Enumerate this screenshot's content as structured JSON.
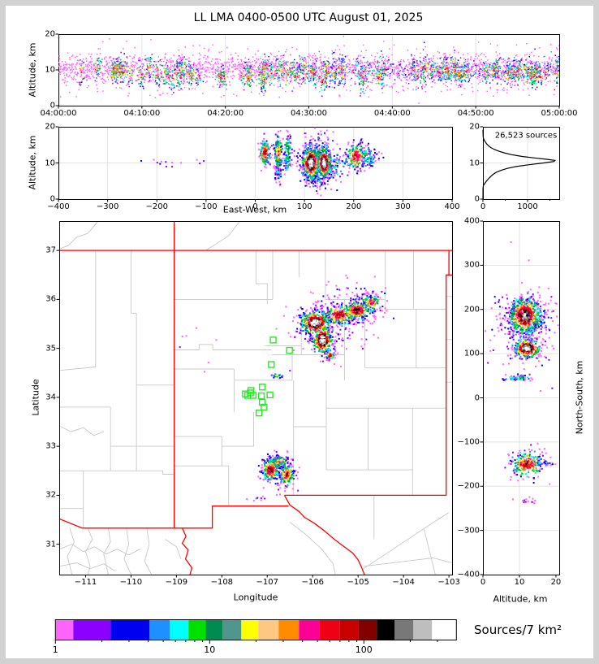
{
  "title": "LL LMA 0400-0500 UTC August 01, 2025",
  "chart_data": {
    "type": "scatter",
    "title": "LL LMA 0400-0500 UTC August 01, 2025",
    "description": "Lightning Mapping Array source density composite: time-height series, east-west cross-section, altitude histogram, plan-view map, north-south cross-section, log density colorbar",
    "total_sources_label": "26,523 sources",
    "palette": [
      "#ff64ff",
      "#8c00ff",
      "#0000f0",
      "#1e90ff",
      "#00ffff",
      "#00e000",
      "#008c50",
      "#50968c",
      "#ffff00",
      "#ffc882",
      "#ff8c00",
      "#ff0096",
      "#f00014",
      "#c80000",
      "#820000",
      "#000000",
      "#787878",
      "#bebebe",
      "#ffffff"
    ],
    "base_colors": {
      "grid": "#e3e3e3",
      "county": "#c8c8c8",
      "state": "#ff0000",
      "station": "#2be52b",
      "spine": "#000000"
    },
    "panels": {
      "time_height": {
        "ylabel": "Altitude, km",
        "alt_range": [
          0,
          20
        ],
        "yticks": {
          "vals": [
            0,
            10,
            20
          ],
          "labels": [
            "0",
            "10",
            "20"
          ]
        },
        "xticks": {
          "vals": [
            0,
            600,
            1200,
            1800,
            2400,
            3000,
            3600
          ],
          "labels": [
            "04:00:00",
            "04:10:00",
            "04:20:00",
            "04:30:00",
            "04:40:00",
            "04:50:00",
            "05:00:00"
          ]
        },
        "scatter_model": {
          "background_n": 2600,
          "late_blue_n": 320,
          "striations": 95,
          "band_center_km": 10.1,
          "band_spread_km": [
            1.6,
            3.1
          ]
        }
      },
      "ew_height": {
        "ylabel": "Altitude, km",
        "xlabel": "East-West, km",
        "x_range": [
          -400,
          400
        ],
        "alt_range": [
          0,
          20
        ],
        "yticks": {
          "vals": [
            0,
            10,
            20
          ],
          "labels": [
            "0",
            "10",
            "20"
          ]
        },
        "xticks": {
          "vals": [
            -400,
            -300,
            -200,
            -100,
            0,
            100,
            200,
            300,
            400
          ],
          "labels": [
            "−400",
            "−300",
            "−200",
            "−100",
            "0",
            "100",
            "200",
            "300",
            "400"
          ]
        },
        "clusters": [
          {
            "x": 20,
            "y": 12.8,
            "sx": 5,
            "sy": 1.7,
            "n": 170,
            "p": 13
          },
          {
            "x": 47,
            "y": 12.5,
            "sx": 4.5,
            "sy": 2.6,
            "n": 160,
            "p": 10
          },
          {
            "x": 47,
            "y": 7.5,
            "sx": 3,
            "sy": 2,
            "n": 40,
            "p": 3
          },
          {
            "x": 66,
            "y": 12.5,
            "sx": 4,
            "sy": 3,
            "n": 110,
            "p": 6
          },
          {
            "x": 113,
            "y": 10,
            "sx": 9,
            "sy": 2.3,
            "n": 480,
            "p": 18
          },
          {
            "x": 140,
            "y": 10,
            "sx": 7,
            "sy": 2.1,
            "n": 380,
            "p": 18
          },
          {
            "x": 127,
            "y": 11,
            "sx": 20,
            "sy": 3.6,
            "n": 240,
            "p": 6
          },
          {
            "x": 127,
            "y": 5.5,
            "sx": 12,
            "sy": 1.8,
            "n": 70,
            "p": 3
          },
          {
            "x": 205,
            "y": 11.8,
            "sx": 11,
            "sy": 1.9,
            "n": 210,
            "p": 12
          },
          {
            "x": 230,
            "y": 12,
            "sx": 11,
            "sy": 1.6,
            "n": 90,
            "p": 5
          },
          {
            "x": 165,
            "y": 9,
            "sx": 12,
            "sy": 2,
            "n": 60,
            "p": 4
          },
          {
            "x": -155,
            "y": 10,
            "sx": 35,
            "sy": 0.7,
            "n": 13,
            "p": 0
          }
        ]
      },
      "source_histogram": {
        "annotation": "26,523 sources",
        "x_range": [
          0,
          1709
        ],
        "xticks": {
          "vals": [
            0,
            1000
          ],
          "labels": [
            "0",
            "1000"
          ]
        },
        "xminor": [
          500,
          1500
        ],
        "yticks": {
          "vals": [
            0,
            10,
            20
          ],
          "labels": [
            "0",
            "10",
            "20"
          ]
        },
        "profile_alt_count": [
          [
            0,
            0
          ],
          [
            3,
            2
          ],
          [
            3.8,
            10
          ],
          [
            4.3,
            40
          ],
          [
            5,
            80
          ],
          [
            5.5,
            115
          ],
          [
            6,
            155
          ],
          [
            6.5,
            195
          ],
          [
            7,
            245
          ],
          [
            7.5,
            315
          ],
          [
            8,
            415
          ],
          [
            8.5,
            545
          ],
          [
            9,
            745
          ],
          [
            9.5,
            1030
          ],
          [
            10,
            1360
          ],
          [
            10.4,
            1590
          ],
          [
            10.7,
            1615
          ],
          [
            11,
            1450
          ],
          [
            11.4,
            1150
          ],
          [
            11.8,
            880
          ],
          [
            12.3,
            640
          ],
          [
            12.8,
            470
          ],
          [
            13.3,
            345
          ],
          [
            13.8,
            245
          ],
          [
            14.3,
            170
          ],
          [
            14.8,
            118
          ],
          [
            15.3,
            82
          ],
          [
            15.8,
            55
          ],
          [
            16.2,
            34
          ],
          [
            16.6,
            18
          ],
          [
            17,
            9
          ],
          [
            17.6,
            4
          ],
          [
            18.4,
            1
          ],
          [
            19.2,
            0
          ]
        ]
      },
      "plan_map": {
        "xlabel": "Longitude",
        "ylabel": "Latitude",
        "lon_range": [
          -111.58,
          -102.93
        ],
        "lat_range": [
          30.38,
          37.6
        ],
        "xticks": {
          "vals": [
            -111,
            -110,
            -109,
            -108,
            -107,
            -106,
            -105,
            -104,
            -103
          ],
          "labels": [
            "−111",
            "−110",
            "−109",
            "−108",
            "−107",
            "−106",
            "−105",
            "−104",
            "−103"
          ]
        },
        "yticks": {
          "vals": [
            31,
            32,
            33,
            34,
            35,
            36,
            37
          ],
          "labels": [
            "31",
            "32",
            "33",
            "34",
            "35",
            "36",
            "37"
          ]
        },
        "clusters": [
          {
            "x": -105.95,
            "y": 35.52,
            "sx": 0.17,
            "sy": 0.13,
            "n": 400,
            "p": 18
          },
          {
            "x": -105.78,
            "y": 35.17,
            "sx": 0.11,
            "sy": 0.15,
            "n": 300,
            "p": 18
          },
          {
            "x": -105.4,
            "y": 35.68,
            "sx": 0.2,
            "sy": 0.11,
            "n": 230,
            "p": 13
          },
          {
            "x": -105.02,
            "y": 35.78,
            "sx": 0.16,
            "sy": 0.1,
            "n": 240,
            "p": 14
          },
          {
            "x": -104.72,
            "y": 35.93,
            "sx": 0.12,
            "sy": 0.09,
            "n": 130,
            "p": 11
          },
          {
            "x": -105.62,
            "y": 34.85,
            "sx": 0.05,
            "sy": 0.05,
            "n": 45,
            "p": 13
          },
          {
            "x": -105.6,
            "y": 35.5,
            "sx": 0.45,
            "sy": 0.33,
            "n": 170,
            "p": 1
          },
          {
            "x": -104.9,
            "y": 35.9,
            "sx": 0.3,
            "sy": 0.2,
            "n": 70,
            "p": 1
          },
          {
            "x": -106.93,
            "y": 32.52,
            "sx": 0.09,
            "sy": 0.12,
            "n": 190,
            "p": 14
          },
          {
            "x": -106.57,
            "y": 32.42,
            "sx": 0.09,
            "sy": 0.1,
            "n": 160,
            "p": 13
          },
          {
            "x": -106.75,
            "y": 32.68,
            "sx": 0.11,
            "sy": 0.07,
            "n": 110,
            "p": 9
          },
          {
            "x": -106.73,
            "y": 32.5,
            "sx": 0.2,
            "sy": 0.2,
            "n": 90,
            "p": 2
          },
          {
            "x": -106.78,
            "y": 34.44,
            "sx": 0.06,
            "sy": 0.025,
            "n": 22,
            "p": 10
          },
          {
            "x": -107.2,
            "y": 31.93,
            "sx": 0.1,
            "sy": 0.025,
            "n": 10,
            "p": 1
          },
          {
            "x": -108.7,
            "y": 35.1,
            "sx": 0.5,
            "sy": 0.35,
            "n": 7,
            "p": 0
          }
        ],
        "stations_lonlat": [
          [
            -106.87,
            35.17
          ],
          [
            -106.51,
            34.96
          ],
          [
            -106.91,
            34.67
          ],
          [
            -107.11,
            34.21
          ],
          [
            -107.36,
            34.14
          ],
          [
            -107.43,
            34.04
          ],
          [
            -107.31,
            34.04
          ],
          [
            -107.13,
            34.03
          ],
          [
            -106.94,
            34.05
          ],
          [
            -107.37,
            34.09
          ],
          [
            -107.48,
            34.07
          ],
          [
            -107.11,
            33.9
          ],
          [
            -107.07,
            33.8
          ],
          [
            -107.18,
            33.68
          ]
        ],
        "state_borders": [
          "-111.58 37 -102.93 37",
          "-109.05 37.6 -109.05 31.33",
          "-103.0 37 -103.0 36.5 -103.06 36.5 -103.06 32.0 -106.62 32.0",
          "-103.0 36.5 -102.93 36.5",
          "-106.62 32.0 -106.5 31.8 -106.3 31.67 -106.18 31.55 -105.95 31.42 -105.75 31.28 -105.55 31.12 -105.35 30.98 -105.12 30.82 -105.0 30.68 -104.92 30.52 -104.86 30.38",
          "-106.53 31.78 -108.21 31.78 -108.21 31.33 -111.07 31.33 -111.58 31.52",
          "-108.87 31.33 -108.79 31.16 -108.87 31.02 -108.74 30.88 -108.8 30.7 -108.66 30.52 -108.7 30.38"
        ],
        "county_lines": [
          "-110.78 37 -110.78 34.62",
          "-111.58 34.55 -110.78 34.62",
          "-110.0 37 -110.0 35.72 -109.88 35.72 -109.88 34.25 -109.05 34.25",
          "-111.58 33.8 -110.45 33.8",
          "-110.45 33.8 -110.45 32.5",
          "-109.88 34.25 -109.88 32.5",
          "-111.58 32.5 -109.3 32.5 -109.3 32.43 -109.05 32.43",
          "-111.05 32.5 -111.05 31.33",
          "-111.58 31.73 -111.05 31.73",
          "-110.45 33.0 -109.05 33.0",
          "-110.72 37.6 -110.95 37.35 -111.2 37.27 -111.38 37.1 -111.58 37.03",
          "-111.58 33.42 -111.33 33.3 -111.05 33.38 -110.82 33.22 -110.6 33.3",
          "-107.6 37.6 -107.85 37.3 -108.1 37.15 -108.35 37.0",
          "-109.05 36.0 -106.88 36.0",
          "-106.88 37 -106.88 36.0",
          "-107.25 37 -107.25 36.32 -107.0 36.32 -107.0 35.9",
          "-109.05 34.97 -108.5 34.97 -108.5 35.08 -108.2 35.08 -108.2 34.97 -106.9 34.97",
          "-109.05 34.58 -107.73 34.58",
          "-107.73 34.58 -107.73 33.7",
          "-109.05 33.2 -108.0 33.2",
          "-109.05 32.6 -107.85 32.6",
          "-107.85 32.6 -107.85 31.78",
          "-107.73 34.35 -106.45 34.35",
          "-106.45 34.87 -106.45 34.35",
          "-107.05 35.05 -106.25 35.05",
          "-106.25 35.6 -106.25 34.87",
          "-106.9 34.87 -105.3 34.87",
          "-105.3 35.22 -105.3 34.35",
          "-106.25 35.55 -105.72 35.55",
          "-105.72 37 -105.72 36.0",
          "-106.3 37 -106.3 36.45",
          "-105.72 36.0 -104.4 36.0",
          "-104.4 37 -104.4 35.75",
          "-105.3 36.0 -105.3 35.22",
          "-103.78 37 -103.78 35.8",
          "-104.4 35.8 -103.06 35.8",
          "-104.85 35.75 -104.85 34.6",
          "-104.85 34.6 -103.06 34.6",
          "-103.72 35.8 -103.72 34.6",
          "-106.42 34.35 -106.42 32.0",
          "-105.7 34.35 -105.7 32.52",
          "-105.7 33.78 -103.06 33.78",
          "-104.78 33.78 -104.78 32.52",
          "-103.8 33.78 -103.8 32.0",
          "-105.7 32.52 -103.8 32.52",
          "-108.0 33.2 -108.0 32.6",
          "-107.3 33.7 -107.3 33.0 -108.0 33.0",
          "-106.42 33.4 -105.7 33.4",
          "-103.06 36.06 -102.93 36.06",
          "-103.06 35.18 -102.93 35.18",
          "-103.06 34.31 -102.93 34.31",
          "-104.88 30.5 -103.55 31.32",
          "-103.55 31.32 -103.0 31.65",
          "-104.88 30.55 -103.35 30.72 -102.93 30.62",
          "-103.55 31.32 -103.3 30.38",
          "-104.65 32.0 -104.65 31.1",
          "-106.5 31.45 -106.15 31.2 -105.8 30.9 -105.55 30.6 -105.5 30.38",
          "-111.58 30.9 -111.3 31.0 -111.05 30.85 -110.8 30.95 -110.55 30.8 -110.3 30.9 -110.05 30.78 -109.8 30.9",
          "-111.35 31.33 -111.25 31.05 -111.4 30.75 -111.3 30.38",
          "-110.95 31.33 -110.85 31.1 -111.0 30.85 -110.9 30.55 -110.95 30.38",
          "-110.5 31.33 -110.45 31.05 -110.6 30.8 -110.5 30.38",
          "-110.1 31.33 -110.05 31.0 -110.15 30.7 -110.0 30.38",
          "-109.65 31.33 -109.6 31.0 -109.7 30.65 -109.55 30.38",
          "-109.25 31.1 -109.0 30.95 -108.9 30.7",
          "-111.58 30.55 -111.2 30.62 -110.9 30.5 -110.6 30.6 -110.35 30.45"
        ]
      },
      "ns_height": {
        "xlabel": "Altitude, km",
        "ylabel": "North-South, km",
        "x_range": [
          0,
          20
        ],
        "y_range": [
          -400,
          400
        ],
        "xticks": {
          "vals": [
            0,
            10,
            20
          ],
          "labels": [
            "0",
            "10",
            "20"
          ]
        },
        "yticks": {
          "vals": [
            400,
            300,
            200,
            100,
            0,
            -100,
            -200,
            -300,
            -400
          ],
          "labels": [
            "400",
            "300",
            "200",
            "100",
            "0",
            "−100",
            "−200",
            "−300",
            "−400"
          ]
        },
        "clusters": [
          {
            "x": 11.5,
            "y": 185,
            "sx": 2.3,
            "sy": 21,
            "n": 650,
            "p": 16
          },
          {
            "x": 13,
            "y": 178,
            "sx": 4,
            "sy": 33,
            "n": 200,
            "p": 3
          },
          {
            "x": 12,
            "y": 112,
            "sx": 1.9,
            "sy": 11,
            "n": 330,
            "p": 18
          },
          {
            "x": 9.5,
            "y": 45,
            "sx": 2.2,
            "sy": 3,
            "n": 55,
            "p": 6
          },
          {
            "x": 12,
            "y": -150,
            "sx": 2.2,
            "sy": 16,
            "n": 260,
            "p": 13
          },
          {
            "x": 15,
            "y": -147,
            "sx": 2.5,
            "sy": 6,
            "n": 50,
            "p": 2
          },
          {
            "x": 12.5,
            "y": -232,
            "sx": 1.6,
            "sy": 4,
            "n": 14,
            "p": 1
          },
          {
            "x": 11,
            "y": 150,
            "sx": 5,
            "sy": 55,
            "n": 110,
            "p": 1
          }
        ]
      }
    },
    "colorbar": {
      "label": "Sources/7 km²",
      "scale": "log",
      "tick_labels": [
        "1",
        "10",
        "100"
      ],
      "tick_values": [
        1,
        10,
        100
      ],
      "minor_tick_values": [
        2,
        3,
        4,
        5,
        6,
        7,
        8,
        9,
        20,
        30,
        40,
        50,
        60,
        70,
        80,
        90,
        200,
        300
      ],
      "segments": [
        {
          "color": "#ff64ff",
          "w": 22
        },
        {
          "color": "#8c00ff",
          "w": 46
        },
        {
          "color": "#0000f0",
          "w": 48
        },
        {
          "color": "#1e90ff",
          "w": 25
        },
        {
          "color": "#00ffff",
          "w": 23
        },
        {
          "color": "#00e000",
          "w": 21
        },
        {
          "color": "#008c50",
          "w": 21
        },
        {
          "color": "#50968c",
          "w": 23
        },
        {
          "color": "#ffff00",
          "w": 21
        },
        {
          "color": "#ffc882",
          "w": 25
        },
        {
          "color": "#ff8c00",
          "w": 25
        },
        {
          "color": "#ff0096",
          "w": 25
        },
        {
          "color": "#f00014",
          "w": 25
        },
        {
          "color": "#c80000",
          "w": 23
        },
        {
          "color": "#820000",
          "w": 23
        },
        {
          "color": "#000000",
          "w": 22
        },
        {
          "color": "#787878",
          "w": 23
        },
        {
          "color": "#bebebe",
          "w": 23
        },
        {
          "color": "#ffffff",
          "w": 30
        }
      ]
    }
  }
}
